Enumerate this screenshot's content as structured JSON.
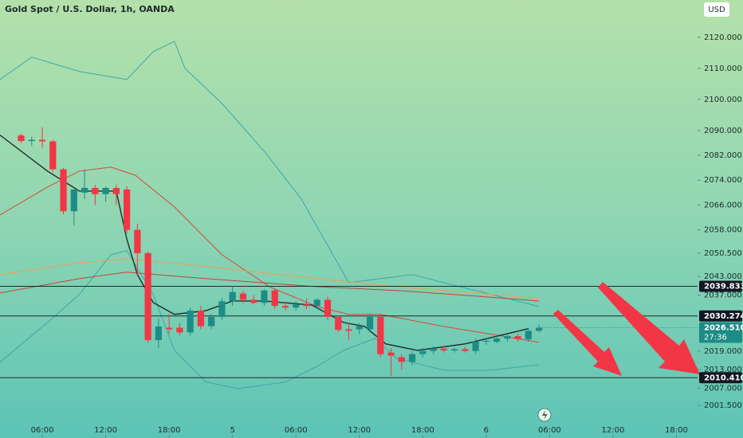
{
  "chart_data": {
    "type": "candlestick",
    "title": "Gold Spot / U.S. Dollar, 1h, OANDA",
    "currency": "USD",
    "x": [
      4,
      5,
      6,
      7,
      8,
      9,
      10,
      11,
      12,
      13,
      14,
      15,
      16,
      17,
      18,
      19,
      20,
      21,
      22,
      23,
      24,
      25,
      26,
      27,
      28,
      29,
      30,
      31,
      32,
      33,
      34,
      35,
      36,
      37,
      38,
      39,
      40,
      41,
      42,
      43,
      44,
      45,
      46,
      47,
      48,
      49,
      50,
      51,
      52,
      53
    ],
    "open": [
      2088.4,
      2086.6,
      2087,
      2086.5,
      2077.5,
      2064,
      2070,
      2071.5,
      2069.5,
      2071.5,
      2071,
      2058,
      2050.5,
      2022.5,
      2026.5,
      2026.5,
      2025,
      2032,
      2027,
      2030,
      2035,
      2037.5,
      2035.5,
      2034.5,
      2038.5,
      2033.5,
      2033,
      2034,
      2033.5,
      2035.5,
      2030,
      2026,
      2026,
      2026,
      2030,
      2018.5,
      2017,
      2015.5,
      2018,
      2019,
      2019.8,
      2019.2,
      2019.6,
      2019,
      2022,
      2022,
      2023,
      2023.8,
      2022.8,
      2025.5
    ],
    "high": [
      2089,
      2088,
      2091,
      2087,
      2078,
      2071,
      2077.5,
      2072.5,
      2072,
      2072.5,
      2072,
      2060,
      2051,
      2029.5,
      2031,
      2028,
      2033,
      2033.5,
      2031,
      2036,
      2040,
      2038.5,
      2037,
      2039,
      2039,
      2035,
      2035,
      2036,
      2036,
      2036.5,
      2030.5,
      2028,
      2028,
      2031,
      2031,
      2020,
      2018,
      2019,
      2020,
      2020.5,
      2020.5,
      2020,
      2020.4,
      2023,
      2023,
      2024,
      2024.5,
      2024.5,
      2026.5,
      2027.5
    ],
    "low": [
      2086,
      2085,
      2084.5,
      2076.5,
      2063,
      2059.5,
      2068,
      2066,
      2067,
      2066,
      2057,
      2043.5,
      2021.5,
      2020,
      2024.5,
      2024,
      2024,
      2026,
      2026,
      2029,
      2033.5,
      2034.5,
      2034,
      2033.5,
      2032.5,
      2032,
      2032,
      2032.5,
      2032.5,
      2029,
      2025,
      2022.5,
      2024.5,
      2025,
      2017,
      2011,
      2013,
      2014.5,
      2017,
      2018,
      2018.5,
      2018.5,
      2018.5,
      2018,
      2021,
      2021.5,
      2022,
      2022,
      2022,
      2025
    ],
    "close": [
      2086.6,
      2087,
      2086.5,
      2077.5,
      2064,
      2071,
      2071.5,
      2069.5,
      2071.5,
      2069.5,
      2058,
      2050.5,
      2022.5,
      2026.9,
      2026,
      2025,
      2032,
      2027,
      2030,
      2035,
      2038,
      2035.5,
      2034.5,
      2038.5,
      2033.5,
      2033,
      2034,
      2033.5,
      2035.5,
      2030,
      2025.8,
      2025.5,
      2027,
      2030,
      2018,
      2017.5,
      2015.5,
      2018,
      2019,
      2019.8,
      2019.2,
      2019.6,
      2019,
      2022,
      2022.3,
      2023,
      2023.8,
      2022.8,
      2025.5,
      2026.51
    ],
    "up_color": "#1e8c86",
    "down_color": "#f23645",
    "lines": [
      {
        "color": "#3fa6a8",
        "x": [
          2,
          5,
          9.5,
          14,
          16.5,
          18.5,
          19.5,
          23,
          27,
          30.5,
          33.5,
          35,
          38,
          41,
          44,
          48.5,
          53
        ],
        "values": [
          2106.4,
          2113.6,
          2109,
          2106.4,
          2115.4,
          2118.7,
          2110,
          2098.7,
          2083.3,
          2068,
          2050,
          2041,
          2042.3,
          2043.6,
          2041,
          2037.2,
          2033.3
        ]
      },
      {
        "color": "#3fa6a8",
        "x": [
          2,
          6.5,
          9.5,
          12.5,
          14,
          16.5,
          18.5,
          21.5,
          24.5,
          29,
          32,
          34.5,
          37.5,
          39.5,
          44,
          48.5,
          53
        ],
        "values": [
          2015.4,
          2028.2,
          2037.2,
          2050,
          2051.3,
          2037.2,
          2019.2,
          2009,
          2006.9,
          2009,
          2014.1,
          2019.2,
          2023.1,
          2016.7,
          2012.8,
          2012.8,
          2014.6
        ]
      },
      {
        "color": "#d9463a",
        "x": [
          2,
          6.5,
          9.5,
          12.5,
          14.8,
          18.5,
          23,
          27.5,
          32,
          35,
          38,
          44,
          48.5,
          53
        ],
        "values": [
          2062.8,
          2071.8,
          2076.9,
          2078.2,
          2075.6,
          2065.4,
          2050,
          2039.7,
          2033.3,
          2030.8,
          2030.8,
          2026.9,
          2024.4,
          2021.8
        ]
      },
      {
        "color": "#f0a050",
        "x": [
          2,
          9.5,
          14,
          21.5,
          32,
          39.5,
          47,
          53
        ],
        "values": [
          2043.6,
          2047.4,
          2048.7,
          2046.2,
          2042.3,
          2039.7,
          2037.7,
          2035.9
        ]
      },
      {
        "color": "#c0463a",
        "x": [
          2,
          9.5,
          14,
          21.5,
          32,
          39.5,
          47,
          53
        ],
        "values": [
          2037.7,
          2042.3,
          2044.4,
          2042.3,
          2039.7,
          2038.5,
          2036.7,
          2035.1
        ]
      },
      {
        "color": "#1f2d2d",
        "x": [
          2,
          6.5,
          9.5,
          13,
          14,
          15,
          16.5,
          18.5,
          21.5,
          24,
          27,
          31.5,
          34.5,
          36.5,
          38.5,
          41.5,
          46,
          52
        ],
        "values": [
          2088.5,
          2076.9,
          2070.5,
          2070.5,
          2055,
          2043.6,
          2034.6,
          2030.8,
          2032,
          2035.1,
          2035.1,
          2033.8,
          2028.2,
          2026.9,
          2021.3,
          2019.2,
          2021.3,
          2026.2
        ]
      }
    ],
    "levels": [
      {
        "value": 2039.833,
        "label": "2039.833"
      },
      {
        "value": 2030.274,
        "label": "2030.274"
      },
      {
        "value": 2010.41,
        "label": "2010.410"
      }
    ],
    "last_price": {
      "value": 2026.51,
      "label": "2026.510",
      "countdown": "27:36"
    },
    "xlim": [
      2,
      68
    ],
    "xticks": [
      {
        "value": 6,
        "label": "06:00"
      },
      {
        "value": 12,
        "label": "12:00"
      },
      {
        "value": 18,
        "label": "18:00"
      },
      {
        "value": 24,
        "label": "5"
      },
      {
        "value": 30,
        "label": "06:00"
      },
      {
        "value": 36,
        "label": "12:00"
      },
      {
        "value": 42,
        "label": "18:00"
      },
      {
        "value": 48,
        "label": "6"
      },
      {
        "value": 54,
        "label": "06:00"
      },
      {
        "value": 60,
        "label": "12:00"
      },
      {
        "value": 66,
        "label": "18:00"
      }
    ],
    "ylim": [
      1991,
      2132
    ],
    "yticks": [
      {
        "value": 2120,
        "label": "2120.000"
      },
      {
        "value": 2110,
        "label": "2110.000"
      },
      {
        "value": 2100,
        "label": "2100.000"
      },
      {
        "value": 2090,
        "label": "2090.000"
      },
      {
        "value": 2082,
        "label": "2082.000"
      },
      {
        "value": 2074,
        "label": "2074.000"
      },
      {
        "value": 2066,
        "label": "2066.000"
      },
      {
        "value": 2058,
        "label": "2058.000"
      },
      {
        "value": 2050.5,
        "label": "2050.500"
      },
      {
        "value": 2043,
        "label": "2043.000"
      },
      {
        "value": 2037,
        "label": "2037.000"
      },
      {
        "value": 2019,
        "label": "2019.000"
      },
      {
        "value": 2013,
        "label": "2013.000"
      },
      {
        "value": 2007,
        "label": "2007.000"
      },
      {
        "value": 2001.5,
        "label": "2001.500"
      }
    ]
  }
}
